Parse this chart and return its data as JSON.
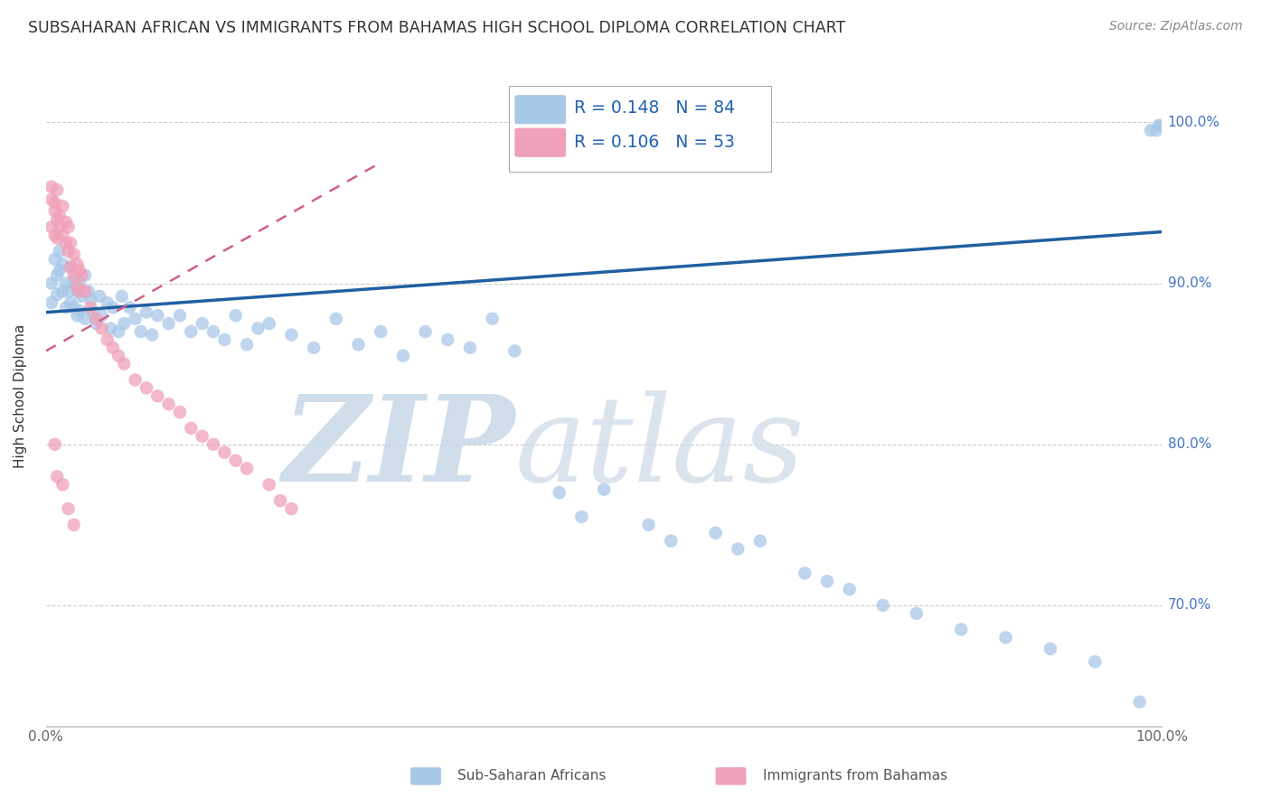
{
  "title": "SUBSAHARAN AFRICAN VS IMMIGRANTS FROM BAHAMAS HIGH SCHOOL DIPLOMA CORRELATION CHART",
  "source": "Source: ZipAtlas.com",
  "ylabel": "High School Diploma",
  "legend_blue_label": "Sub-Saharan Africans",
  "legend_pink_label": "Immigrants from Bahamas",
  "blue_color": "#a8c8e8",
  "pink_color": "#f0a0b8",
  "trend_blue_color": "#2060a0",
  "trend_pink_color": "#d06080",
  "xlim": [
    0.0,
    1.0
  ],
  "ylim": [
    0.625,
    1.035
  ],
  "yticks": [
    0.7,
    0.8,
    0.9,
    1.0
  ],
  "ytick_labels": [
    "70.0%",
    "80.0%",
    "90.0%",
    "100.0%"
  ],
  "blue_line_x": [
    0.0,
    1.0
  ],
  "blue_line_y": [
    0.882,
    0.932
  ],
  "pink_line_x": [
    0.0,
    0.3
  ],
  "pink_line_y": [
    0.858,
    0.975
  ],
  "blue_x": [
    0.005,
    0.005,
    0.008,
    0.01,
    0.01,
    0.012,
    0.012,
    0.015,
    0.015,
    0.018,
    0.018,
    0.02,
    0.022,
    0.022,
    0.025,
    0.025,
    0.028,
    0.028,
    0.03,
    0.03,
    0.032,
    0.035,
    0.035,
    0.038,
    0.04,
    0.042,
    0.045,
    0.048,
    0.05,
    0.055,
    0.058,
    0.06,
    0.065,
    0.068,
    0.07,
    0.075,
    0.08,
    0.085,
    0.09,
    0.095,
    0.1,
    0.11,
    0.12,
    0.13,
    0.14,
    0.15,
    0.16,
    0.17,
    0.18,
    0.19,
    0.2,
    0.22,
    0.24,
    0.26,
    0.28,
    0.3,
    0.32,
    0.34,
    0.36,
    0.38,
    0.4,
    0.42,
    0.46,
    0.48,
    0.5,
    0.54,
    0.56,
    0.6,
    0.62,
    0.64,
    0.68,
    0.7,
    0.72,
    0.75,
    0.78,
    0.82,
    0.86,
    0.9,
    0.94,
    0.98,
    0.99,
    0.995,
    0.997,
    0.999
  ],
  "blue_y": [
    0.9,
    0.888,
    0.915,
    0.905,
    0.893,
    0.92,
    0.908,
    0.912,
    0.895,
    0.9,
    0.885,
    0.895,
    0.91,
    0.888,
    0.902,
    0.885,
    0.895,
    0.88,
    0.9,
    0.883,
    0.892,
    0.905,
    0.878,
    0.895,
    0.89,
    0.882,
    0.875,
    0.892,
    0.88,
    0.888,
    0.872,
    0.885,
    0.87,
    0.892,
    0.875,
    0.885,
    0.878,
    0.87,
    0.882,
    0.868,
    0.88,
    0.875,
    0.88,
    0.87,
    0.875,
    0.87,
    0.865,
    0.88,
    0.862,
    0.872,
    0.875,
    0.868,
    0.86,
    0.878,
    0.862,
    0.87,
    0.855,
    0.87,
    0.865,
    0.86,
    0.878,
    0.858,
    0.77,
    0.755,
    0.772,
    0.75,
    0.74,
    0.745,
    0.735,
    0.74,
    0.72,
    0.715,
    0.71,
    0.7,
    0.695,
    0.685,
    0.68,
    0.673,
    0.665,
    0.64,
    0.995,
    0.995,
    0.998,
    0.998
  ],
  "pink_x": [
    0.005,
    0.005,
    0.005,
    0.008,
    0.008,
    0.008,
    0.01,
    0.01,
    0.01,
    0.012,
    0.012,
    0.015,
    0.015,
    0.018,
    0.018,
    0.02,
    0.02,
    0.022,
    0.022,
    0.025,
    0.025,
    0.028,
    0.028,
    0.03,
    0.03,
    0.032,
    0.035,
    0.04,
    0.045,
    0.05,
    0.055,
    0.06,
    0.065,
    0.07,
    0.08,
    0.09,
    0.1,
    0.11,
    0.12,
    0.13,
    0.14,
    0.15,
    0.16,
    0.17,
    0.18,
    0.2,
    0.21,
    0.22,
    0.008,
    0.01,
    0.015,
    0.02,
    0.025
  ],
  "pink_y": [
    0.952,
    0.935,
    0.96,
    0.945,
    0.93,
    0.95,
    0.94,
    0.928,
    0.958,
    0.935,
    0.942,
    0.93,
    0.948,
    0.925,
    0.938,
    0.92,
    0.935,
    0.925,
    0.91,
    0.918,
    0.905,
    0.912,
    0.898,
    0.908,
    0.895,
    0.905,
    0.895,
    0.885,
    0.878,
    0.872,
    0.865,
    0.86,
    0.855,
    0.85,
    0.84,
    0.835,
    0.83,
    0.825,
    0.82,
    0.81,
    0.805,
    0.8,
    0.795,
    0.79,
    0.785,
    0.775,
    0.765,
    0.76,
    0.8,
    0.78,
    0.775,
    0.76,
    0.75
  ]
}
